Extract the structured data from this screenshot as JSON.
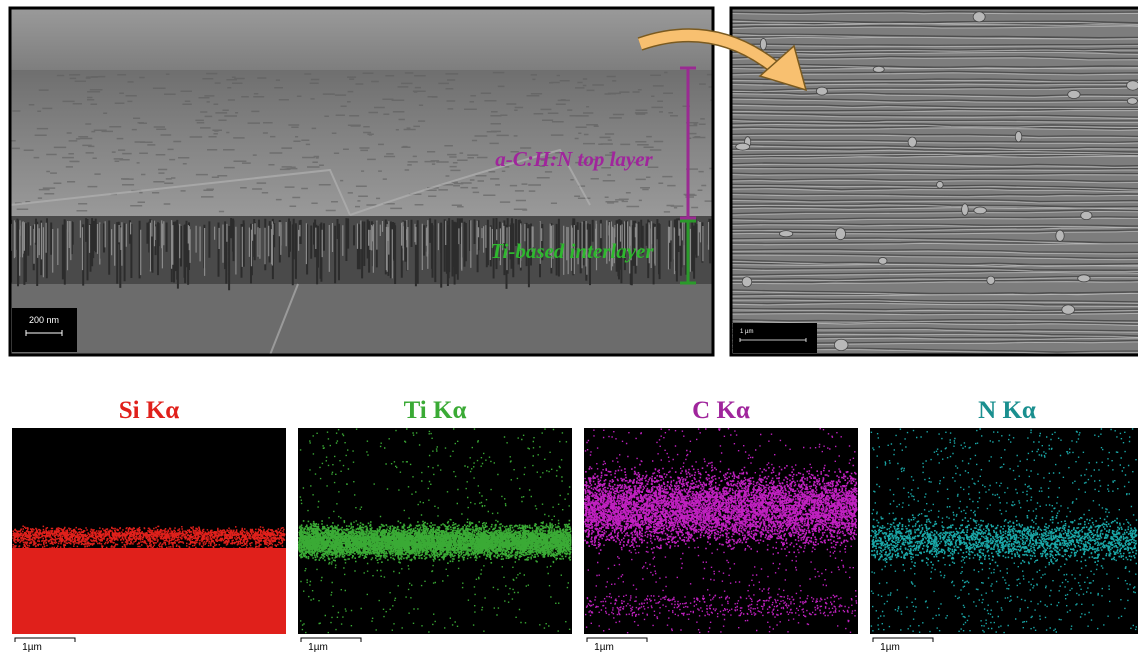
{
  "sem_cross_section": {
    "scale_bar": "200 nm",
    "labels": {
      "top_layer": "a-C:H:N top layer",
      "interlayer": "Ti-based interlayer"
    }
  },
  "sem_surface": {
    "scale_bar": "1 µm"
  },
  "eds_maps": [
    {
      "title": "Si Kα",
      "scale_bar": "1µm"
    },
    {
      "title": "Ti Kα",
      "scale_bar": "1µm"
    },
    {
      "title": "C Kα",
      "scale_bar": "1µm"
    },
    {
      "title": "N Kα",
      "scale_bar": "1µm"
    }
  ]
}
